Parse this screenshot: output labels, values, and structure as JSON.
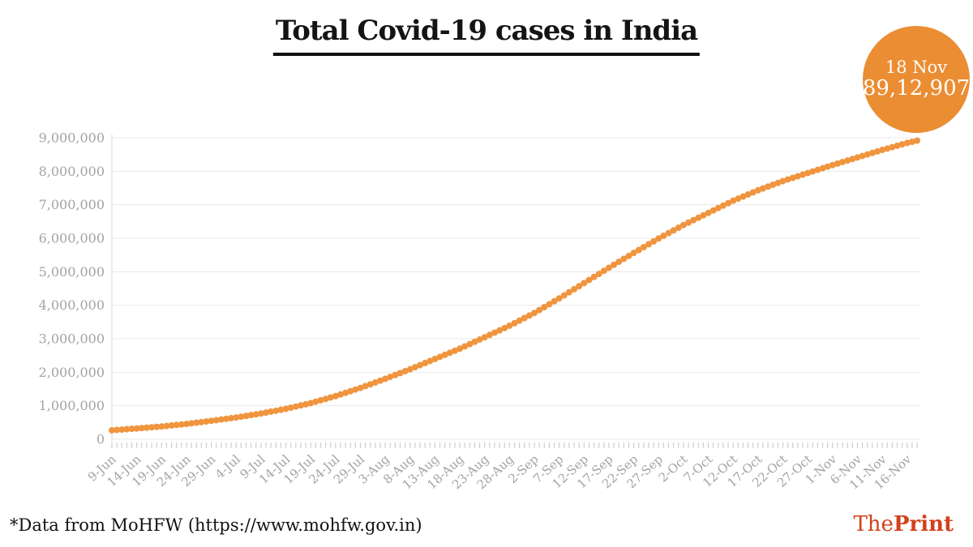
{
  "title": "Total Covid-19 cases in India",
  "badge": {
    "date": "18 Nov",
    "value": "89,12,907",
    "color": "#EB8D33",
    "text_color": "#FFFFFF"
  },
  "footer": {
    "source_note": "*Data from MoHFW (https://www.mohfw.gov.in)"
  },
  "logo": {
    "part1": "The",
    "part2": "Print",
    "color": "#D2411B"
  },
  "chart_data": {
    "type": "scatter",
    "title": "Total Covid-19 cases in India",
    "xlabel": "",
    "ylabel": "",
    "ylim": [
      0,
      9000000
    ],
    "y_tick_step": 1000000,
    "y_tick_labels": [
      "0",
      "1,000,000",
      "2,000,000",
      "3,000,000",
      "4,000,000",
      "5,000,000",
      "6,000,000",
      "7,000,000",
      "8,000,000",
      "9,000,000"
    ],
    "grid": true,
    "point_color": "#F0953F",
    "grid_color": "#E9E9E9",
    "axis_color": "#D9D9D9",
    "tick_color": "#CFCFCF",
    "label_color": "#A3A3A3",
    "points_are_daily": true,
    "days_between_ticks": 5,
    "x_tick_labels": [
      "9-Jun",
      "14-Jun",
      "19-Jun",
      "24-Jun",
      "29-Jun",
      "4-Jul",
      "9-Jul",
      "14-Jul",
      "19-Jul",
      "24-Jul",
      "29-Jul",
      "3-Aug",
      "8-Aug",
      "13-Aug",
      "18-Aug",
      "23-Aug",
      "28-Aug",
      "2-Sep",
      "7-Sep",
      "12-Sep",
      "17-Sep",
      "22-Sep",
      "27-Sep",
      "2-Oct",
      "7-Oct",
      "12-Oct",
      "17-Oct",
      "22-Oct",
      "27-Oct",
      "1-Nov",
      "6-Nov",
      "11-Nov",
      "16-Nov"
    ],
    "anchor_values": [
      266598,
      320922,
      380532,
      456183,
      548318,
      648315,
      767296,
      906752,
      1077618,
      1287945,
      1531669,
      1803695,
      2088611,
      2396637,
      2702742,
      3044940,
      3387500,
      3769523,
      4204613,
      4659984,
      5118253,
      5562663,
      5992532,
      6394068,
      6757131,
      7120538,
      7432680,
      7706946,
      7946429,
      8184082,
      8411724,
      8636011,
      8845127
    ],
    "end_point": {
      "label": "18-Nov",
      "value": 8912907,
      "days_after_last_tick": 2
    }
  }
}
